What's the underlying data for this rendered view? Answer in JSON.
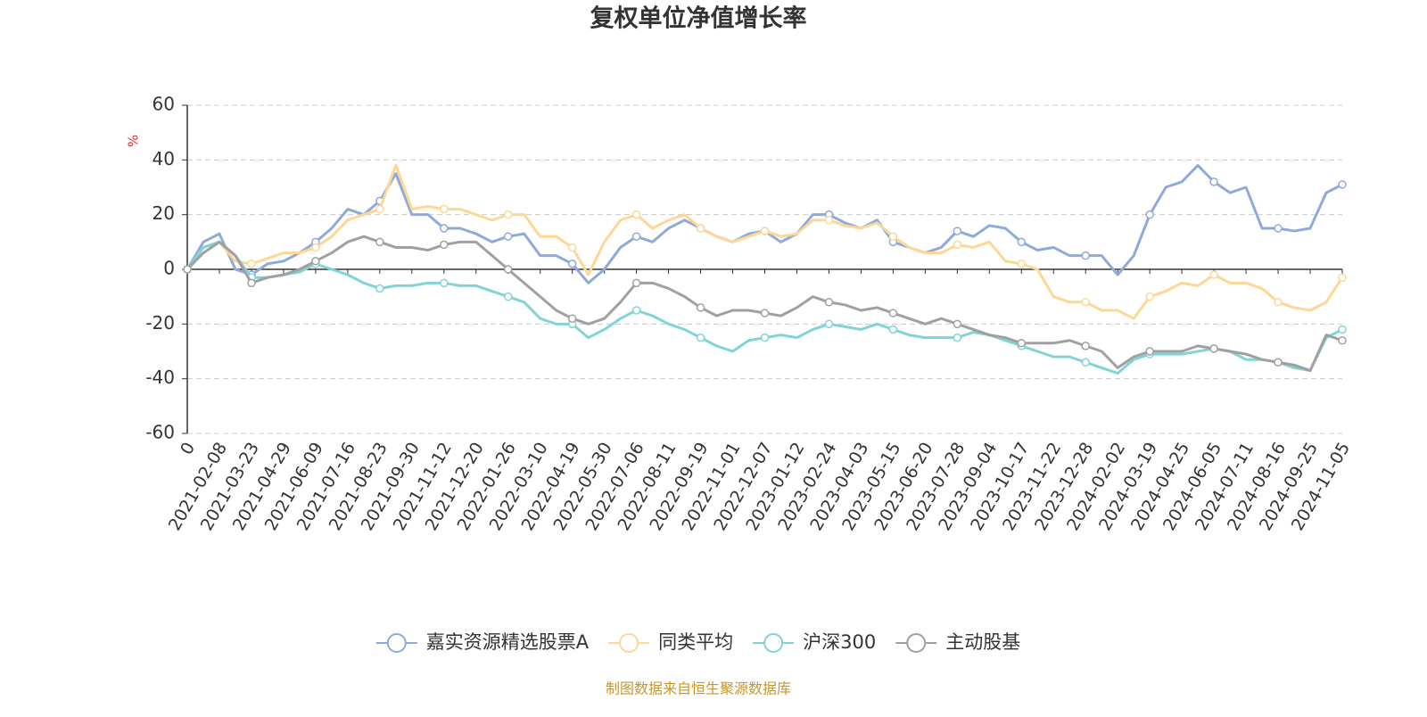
{
  "chart_data": {
    "type": "line",
    "title": "复权单位净值增长率",
    "y_label": "%",
    "source": "制图数据来自恒生聚源数据库",
    "categories": [
      "0",
      null,
      "2021-02-08",
      null,
      "2021-03-23",
      null,
      "2021-04-29",
      null,
      "2021-06-09",
      null,
      "2021-07-16",
      null,
      "2021-08-23",
      null,
      "2021-09-30",
      null,
      "2021-11-12",
      null,
      "2021-12-20",
      null,
      "2022-01-26",
      null,
      "2022-03-10",
      null,
      "2022-04-19",
      null,
      "2022-05-30",
      null,
      "2022-07-06",
      null,
      "2022-08-11",
      null,
      "2022-09-19",
      null,
      "2022-11-01",
      null,
      "2022-12-07",
      null,
      "2023-01-12",
      null,
      "2023-02-24",
      null,
      "2023-04-03",
      null,
      "2023-05-15",
      null,
      "2023-06-20",
      null,
      "2023-07-28",
      null,
      "2023-09-04",
      null,
      "2023-10-17",
      null,
      "2023-11-22",
      null,
      "2023-12-28",
      null,
      "2024-02-02",
      null,
      "2024-03-19",
      null,
      "2024-04-25",
      null,
      "2024-06-05",
      null,
      "2024-07-11",
      null,
      "2024-08-16",
      null,
      "2024-09-25",
      null,
      "2024-11-05"
    ],
    "series": [
      {
        "name": "嘉实资源精选股票A",
        "color": "#8eaadb",
        "values": [
          0,
          10,
          13,
          0,
          -2,
          2,
          3,
          6,
          10,
          15,
          22,
          20,
          25,
          35,
          20,
          20,
          15,
          15,
          13,
          10,
          12,
          13,
          5,
          5,
          2,
          -5,
          0,
          8,
          12,
          10,
          15,
          18,
          15,
          12,
          10,
          13,
          14,
          10,
          13,
          20,
          20,
          17,
          15,
          18,
          10,
          8,
          6,
          8,
          14,
          12,
          16,
          15,
          10,
          7,
          8,
          5,
          5,
          5,
          -2,
          5,
          20,
          30,
          32,
          38,
          32,
          28,
          30,
          15,
          15,
          14,
          15,
          28,
          31
        ]
      },
      {
        "name": "同类平均",
        "color": "#fdd795",
        "values": [
          0,
          8,
          10,
          3,
          2,
          4,
          6,
          6,
          8,
          12,
          18,
          20,
          22,
          38,
          22,
          23,
          22,
          22,
          20,
          18,
          20,
          20,
          12,
          12,
          8,
          -2,
          10,
          18,
          20,
          15,
          18,
          20,
          15,
          12,
          10,
          12,
          14,
          12,
          13,
          18,
          18,
          16,
          15,
          17,
          12,
          8,
          6,
          6,
          9,
          8,
          10,
          3,
          2,
          0,
          -10,
          -12,
          -12,
          -15,
          -15,
          -18,
          -10,
          -8,
          -5,
          -6,
          -2,
          -5,
          -5,
          -7,
          -12,
          -14,
          -15,
          -12,
          -3
        ]
      },
      {
        "name": "沪深300",
        "color": "#80d4d8",
        "values": [
          0,
          8,
          10,
          5,
          -3,
          -3,
          -2,
          -1,
          2,
          0,
          -2,
          -5,
          -7,
          -6,
          -6,
          -5,
          -5,
          -6,
          -6,
          -8,
          -10,
          -12,
          -18,
          -20,
          -20,
          -25,
          -22,
          -18,
          -15,
          -17,
          -20,
          -22,
          -25,
          -28,
          -30,
          -26,
          -25,
          -24,
          -25,
          -22,
          -20,
          -21,
          -22,
          -20,
          -22,
          -24,
          -25,
          -25,
          -25,
          -23,
          -24,
          -26,
          -28,
          -30,
          -32,
          -32,
          -34,
          -36,
          -38,
          -33,
          -31,
          -31,
          -31,
          -30,
          -29,
          -30,
          -33,
          -33,
          -34,
          -36,
          -37,
          -25,
          -22
        ]
      },
      {
        "name": "主动股基",
        "color": "#a0a0a0",
        "values": [
          0,
          6,
          10,
          5,
          -5,
          -3,
          -2,
          0,
          3,
          6,
          10,
          12,
          10,
          8,
          8,
          7,
          9,
          10,
          10,
          5,
          0,
          -5,
          -10,
          -15,
          -18,
          -20,
          -18,
          -12,
          -5,
          -5,
          -7,
          -10,
          -14,
          -17,
          -15,
          -15,
          -16,
          -17,
          -14,
          -10,
          -12,
          -13,
          -15,
          -14,
          -16,
          -18,
          -20,
          -18,
          -20,
          -22,
          -24,
          -25,
          -27,
          -27,
          -27,
          -26,
          -28,
          -30,
          -36,
          -32,
          -30,
          -30,
          -30,
          -28,
          -29,
          -30,
          -31,
          -33,
          -34,
          -35,
          -37,
          -24,
          -26
        ]
      }
    ],
    "ylim": [
      -60,
      60
    ],
    "yticks": [
      -60,
      -40,
      -20,
      0,
      20,
      40,
      60
    ],
    "grid": true
  }
}
